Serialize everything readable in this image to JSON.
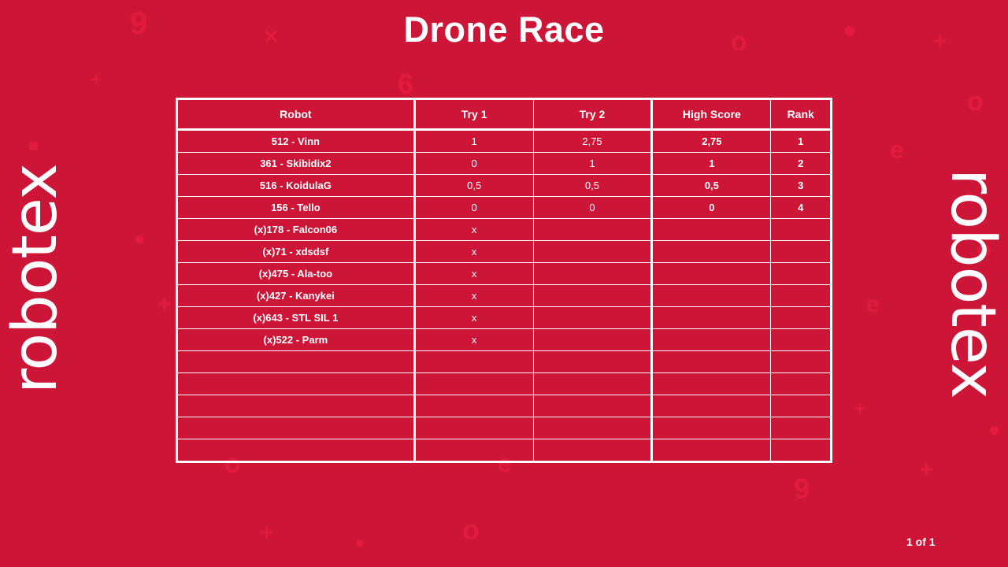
{
  "page": {
    "title": "Drone Race",
    "logo_text": "robotex",
    "pagination": "1 of 1"
  },
  "table": {
    "headers": {
      "robot": "Robot",
      "try1": "Try 1",
      "try2": "Try 2",
      "high_score": "High Score",
      "rank": "Rank"
    },
    "rows": [
      {
        "robot": "512 - Vinn",
        "try1": "1",
        "try2": "2,75",
        "high_score": "2,75",
        "rank": "1"
      },
      {
        "robot": "361 - Skibidix2",
        "try1": "0",
        "try2": "1",
        "high_score": "1",
        "rank": "2"
      },
      {
        "robot": "516 - KoidulaG",
        "try1": "0,5",
        "try2": "0,5",
        "high_score": "0,5",
        "rank": "3"
      },
      {
        "robot": "156 - Tello",
        "try1": "0",
        "try2": "0",
        "high_score": "0",
        "rank": "4"
      },
      {
        "robot": "(x)178 - Falcon06",
        "try1": "x",
        "try2": "",
        "high_score": "",
        "rank": ""
      },
      {
        "robot": "(x)71 - xdsdsf",
        "try1": "x",
        "try2": "",
        "high_score": "",
        "rank": ""
      },
      {
        "robot": "(x)475 - Ala-too",
        "try1": "x",
        "try2": "",
        "high_score": "",
        "rank": ""
      },
      {
        "robot": "(x)427 - Kanykei",
        "try1": "x",
        "try2": "",
        "high_score": "",
        "rank": ""
      },
      {
        "robot": "(x)643 - STL SIL 1",
        "try1": "x",
        "try2": "",
        "high_score": "",
        "rank": ""
      },
      {
        "robot": "(x)522 - Parm",
        "try1": "x",
        "try2": "",
        "high_score": "",
        "rank": ""
      },
      {
        "robot": "",
        "try1": "",
        "try2": "",
        "high_score": "",
        "rank": ""
      },
      {
        "robot": "",
        "try1": "",
        "try2": "",
        "high_score": "",
        "rank": ""
      },
      {
        "robot": "",
        "try1": "",
        "try2": "",
        "high_score": "",
        "rank": ""
      },
      {
        "robot": "",
        "try1": "",
        "try2": "",
        "high_score": "",
        "rank": ""
      },
      {
        "robot": "",
        "try1": "",
        "try2": "",
        "high_score": "",
        "rank": ""
      }
    ]
  },
  "colors": {
    "background": "#cd1537",
    "pattern": "#e21a3e",
    "foreground": "#ffffff"
  }
}
